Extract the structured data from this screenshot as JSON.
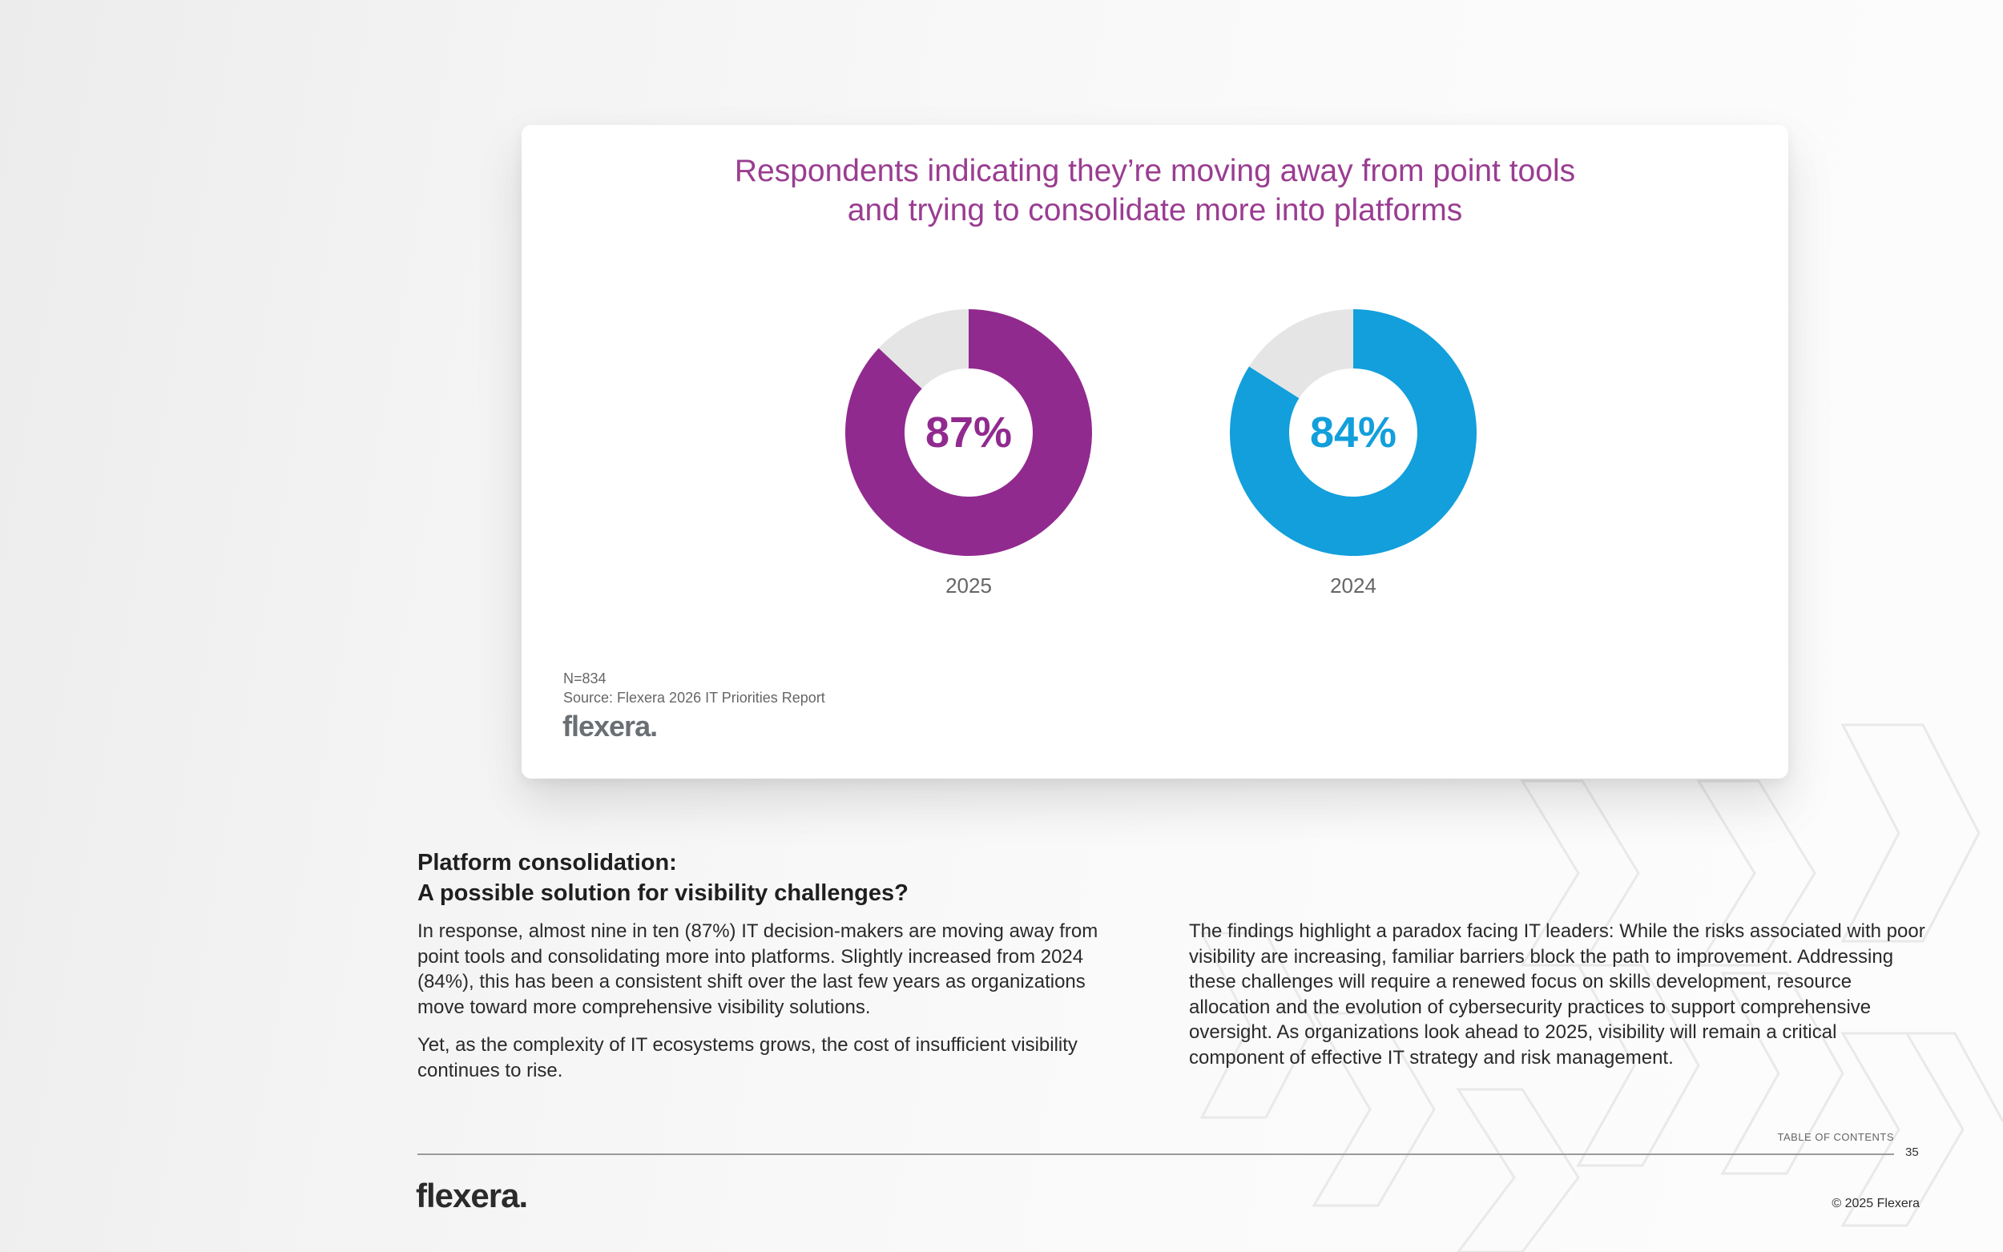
{
  "chart_data": {
    "type": "pie",
    "title": "Respondents indicating they’re moving away from point tools and trying to consolidate more into platforms",
    "title_lines": [
      "Respondents indicating they’re moving away from point tools",
      "and trying to consolidate more into platforms"
    ],
    "series": [
      {
        "name": "2025",
        "value": 87,
        "label": "87%",
        "color": "#912a8f"
      },
      {
        "name": "2024",
        "value": 84,
        "label": "84%",
        "color": "#129fdb"
      }
    ],
    "remainder_color": "#e5e5e5",
    "notes": {
      "n": "N=834",
      "source": "Source: Flexera 2026 IT Priorities Report"
    }
  },
  "colors": {
    "title": "#9a3d91",
    "purple": "#912a8f",
    "blue": "#129fdb",
    "remainder": "#e5e5e5"
  },
  "brand": {
    "name": "flexera",
    "dot": "."
  },
  "section": {
    "heading_lines": [
      "Platform consolidation:",
      "A possible solution for visibility challenges?"
    ],
    "left_paragraphs": [
      "In response, almost nine in ten (87%) IT decision-makers are moving away from point tools and consolidating more into platforms. Slightly increased from 2024 (84%), this has been a consistent shift over the last few years as organizations move toward more comprehensive visibility solutions.",
      "Yet, as the complexity of IT ecosystems grows, the cost of insufficient visibility continues to rise."
    ],
    "right_paragraphs": [
      "The findings highlight a paradox facing IT leaders: While the risks associated with poor visibility are increasing, familiar barriers block the path to improvement. Addressing these challenges will require a renewed focus on skills development, resource allocation and the evolution of cybersecurity practices to support comprehensive oversight. As organizations look ahead to 2025, visibility will remain a critical component of effective IT strategy and risk management."
    ]
  },
  "footer": {
    "toc_label": "TABLE OF CONTENTS",
    "page_number": "35",
    "copyright": "© 2025 Flexera"
  }
}
